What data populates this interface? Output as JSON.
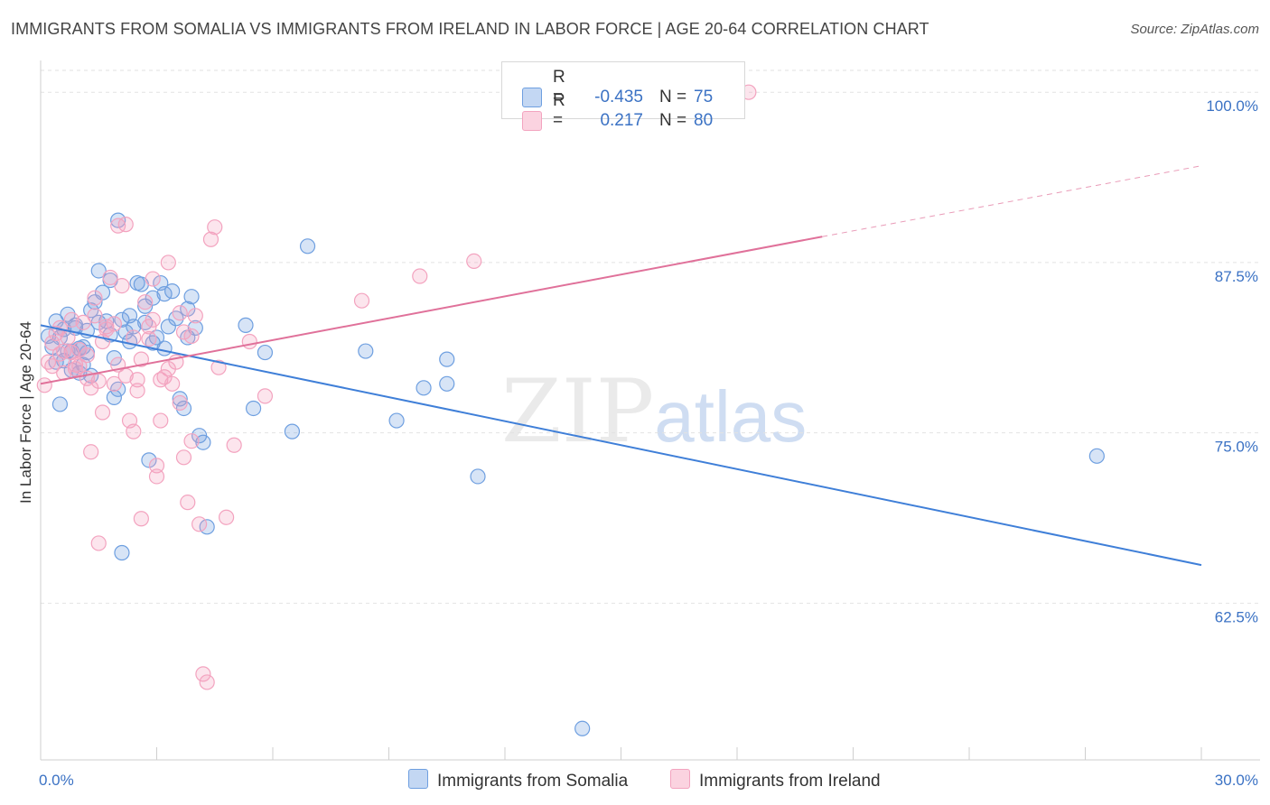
{
  "chart_data": {
    "type": "scatter",
    "title": "IMMIGRANTS FROM SOMALIA VS IMMIGRANTS FROM IRELAND IN LABOR FORCE | AGE 20-64 CORRELATION CHART",
    "source": "Source: ZipAtlas.com",
    "ylabel": "In Labor Force | Age 20-64",
    "xlim": [
      0,
      30
    ],
    "ylim": [
      51,
      102
    ],
    "x_tick_labels": [
      "0.0%",
      "30.0%"
    ],
    "y_ticks": [
      62.5,
      75.0,
      87.5,
      100.0
    ],
    "y_tick_labels": [
      "62.5%",
      "75.0%",
      "87.5%",
      "100.0%"
    ],
    "colors": {
      "somalia": "#6e9fe0",
      "ireland": "#f3a3bf",
      "somalia_line": "#3f7fd8",
      "ireland_line": "#e0719a"
    },
    "watermark": {
      "zip": "ZIP",
      "atlas": "atlas"
    },
    "legend": [
      {
        "r_label": "R =",
        "r_value": "-0.435",
        "n_label": "N =",
        "n_value": "75"
      },
      {
        "r_label": "R =",
        "r_value": "0.217",
        "n_label": "N =",
        "n_value": "80"
      }
    ],
    "series": [
      {
        "name": "Immigrants from Somalia",
        "trend": {
          "x0": 0,
          "y0": 82.9,
          "x1": 30,
          "y1": 65.3
        },
        "points": [
          [
            0.2,
            82.1
          ],
          [
            0.3,
            81.3
          ],
          [
            0.4,
            83.2
          ],
          [
            0.5,
            82.0
          ],
          [
            0.6,
            80.3
          ],
          [
            0.7,
            81.0
          ],
          [
            0.8,
            79.6
          ],
          [
            0.9,
            82.7
          ],
          [
            0.5,
            77.1
          ],
          [
            1.0,
            81.2
          ],
          [
            1.1,
            80.0
          ],
          [
            1.2,
            82.5
          ],
          [
            1.3,
            84.0
          ],
          [
            1.4,
            84.6
          ],
          [
            1.5,
            86.9
          ],
          [
            1.6,
            85.3
          ],
          [
            1.7,
            83.2
          ],
          [
            1.8,
            82.2
          ],
          [
            1.9,
            80.5
          ],
          [
            2.0,
            78.2
          ],
          [
            2.1,
            83.3
          ],
          [
            2.2,
            82.4
          ],
          [
            2.3,
            83.6
          ],
          [
            2.4,
            82.8
          ],
          [
            2.5,
            86.0
          ],
          [
            2.6,
            85.9
          ],
          [
            2.7,
            84.3
          ],
          [
            2.8,
            73.0
          ],
          [
            2.9,
            81.6
          ],
          [
            3.0,
            82.0
          ],
          [
            3.1,
            86.0
          ],
          [
            3.2,
            85.2
          ],
          [
            3.3,
            82.8
          ],
          [
            3.4,
            85.4
          ],
          [
            3.5,
            83.4
          ],
          [
            3.6,
            77.5
          ],
          [
            3.7,
            76.8
          ],
          [
            3.8,
            84.1
          ],
          [
            3.9,
            85.0
          ],
          [
            4.0,
            82.7
          ],
          [
            4.1,
            74.8
          ],
          [
            4.2,
            74.3
          ],
          [
            4.3,
            68.1
          ],
          [
            5.3,
            82.9
          ],
          [
            5.5,
            76.8
          ],
          [
            5.8,
            80.9
          ],
          [
            6.5,
            75.1
          ],
          [
            6.9,
            88.7
          ],
          [
            8.4,
            81.0
          ],
          [
            9.2,
            75.9
          ],
          [
            9.9,
            78.3
          ],
          [
            10.5,
            80.4
          ],
          [
            10.5,
            78.6
          ],
          [
            11.3,
            71.8
          ],
          [
            14.0,
            53.3
          ],
          [
            27.3,
            73.3
          ],
          [
            2.1,
            66.2
          ],
          [
            1.8,
            86.2
          ],
          [
            2.9,
            84.9
          ],
          [
            0.7,
            83.7
          ],
          [
            1.2,
            80.9
          ],
          [
            1.9,
            77.6
          ],
          [
            2.7,
            83.1
          ],
          [
            1.0,
            79.4
          ],
          [
            3.8,
            82.0
          ],
          [
            0.9,
            82.9
          ],
          [
            1.5,
            83.1
          ],
          [
            2.3,
            81.7
          ],
          [
            3.2,
            81.2
          ],
          [
            1.1,
            81.3
          ],
          [
            0.4,
            80.2
          ],
          [
            0.6,
            82.6
          ],
          [
            1.3,
            79.2
          ],
          [
            2.0,
            90.6
          ],
          [
            0.8,
            81.0
          ]
        ]
      },
      {
        "name": "Immigrants from Ireland",
        "trend": {
          "x0": 0,
          "y0": 78.6,
          "x1": 20.2,
          "y1": 89.4,
          "dash_x1": 30,
          "dash_y1": 94.6
        },
        "points": [
          [
            0.1,
            78.5
          ],
          [
            0.2,
            80.2
          ],
          [
            0.3,
            81.6
          ],
          [
            0.4,
            82.3
          ],
          [
            0.5,
            80.8
          ],
          [
            0.6,
            79.4
          ],
          [
            0.7,
            82.0
          ],
          [
            0.8,
            80.9
          ],
          [
            0.9,
            80.0
          ],
          [
            1.0,
            81.1
          ],
          [
            1.1,
            83.1
          ],
          [
            1.2,
            79.0
          ],
          [
            1.3,
            78.3
          ],
          [
            1.4,
            83.6
          ],
          [
            1.5,
            78.8
          ],
          [
            1.6,
            81.7
          ],
          [
            1.7,
            82.8
          ],
          [
            1.8,
            86.4
          ],
          [
            1.9,
            83.0
          ],
          [
            2.0,
            90.2
          ],
          [
            2.1,
            85.8
          ],
          [
            2.2,
            90.3
          ],
          [
            2.3,
            75.9
          ],
          [
            2.4,
            75.1
          ],
          [
            2.5,
            78.9
          ],
          [
            2.6,
            80.4
          ],
          [
            2.7,
            84.6
          ],
          [
            2.8,
            81.9
          ],
          [
            2.9,
            86.3
          ],
          [
            3.0,
            72.6
          ],
          [
            3.1,
            75.9
          ],
          [
            3.2,
            79.1
          ],
          [
            3.3,
            87.5
          ],
          [
            3.4,
            78.6
          ],
          [
            3.5,
            80.2
          ],
          [
            3.6,
            77.2
          ],
          [
            3.7,
            73.2
          ],
          [
            3.8,
            69.9
          ],
          [
            3.9,
            82.1
          ],
          [
            4.0,
            83.6
          ],
          [
            4.1,
            68.3
          ],
          [
            4.2,
            57.3
          ],
          [
            4.3,
            56.7
          ],
          [
            4.4,
            89.2
          ],
          [
            4.5,
            90.1
          ],
          [
            4.6,
            79.8
          ],
          [
            4.8,
            68.8
          ],
          [
            5.0,
            74.1
          ],
          [
            5.4,
            81.7
          ],
          [
            5.8,
            77.7
          ],
          [
            8.3,
            84.7
          ],
          [
            9.8,
            86.5
          ],
          [
            11.2,
            87.6
          ],
          [
            18.3,
            100.0
          ],
          [
            1.3,
            73.6
          ],
          [
            1.5,
            66.9
          ],
          [
            2.6,
            68.7
          ],
          [
            3.0,
            71.8
          ],
          [
            2.2,
            79.2
          ],
          [
            1.0,
            79.9
          ],
          [
            0.5,
            82.7
          ],
          [
            1.7,
            82.6
          ],
          [
            2.4,
            82.0
          ],
          [
            3.3,
            79.7
          ],
          [
            3.9,
            74.4
          ],
          [
            0.8,
            83.3
          ],
          [
            1.2,
            80.7
          ],
          [
            2.0,
            80.0
          ],
          [
            2.8,
            82.8
          ],
          [
            3.6,
            83.8
          ],
          [
            0.3,
            79.9
          ],
          [
            0.6,
            81.0
          ],
          [
            1.4,
            84.9
          ],
          [
            1.9,
            78.6
          ],
          [
            2.5,
            78.1
          ],
          [
            3.1,
            78.9
          ],
          [
            1.6,
            76.5
          ],
          [
            0.9,
            79.7
          ],
          [
            2.9,
            83.3
          ],
          [
            3.7,
            82.4
          ]
        ]
      }
    ]
  }
}
